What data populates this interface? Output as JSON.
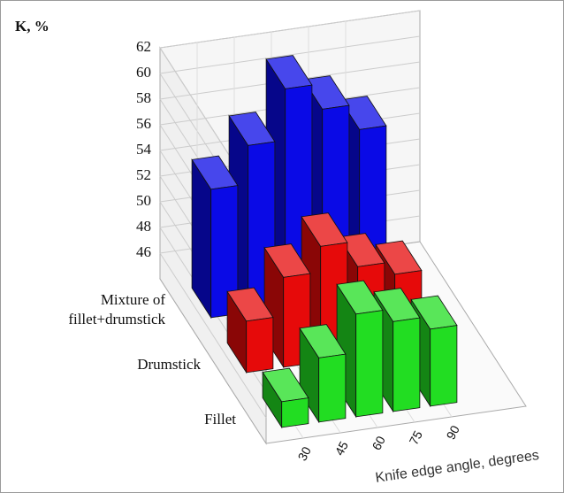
{
  "chart_data": {
    "type": "bar3d",
    "y_label": "K, %",
    "x_label": "Knife edge angle, degrees",
    "x": [
      30,
      45,
      60,
      75,
      90
    ],
    "xlim": [
      15,
      120
    ],
    "ylim": [
      44,
      62
    ],
    "yticks": [
      46,
      48,
      50,
      52,
      54,
      56,
      58,
      60,
      62
    ],
    "grid": true,
    "series": [
      {
        "name": "Mixture of fillet+drumstick",
        "color": "#0a0ae6",
        "values": [
          54,
          57,
          61,
          59,
          57
        ]
      },
      {
        "name": "Drumstick",
        "color": "#e60a0a",
        "values": [
          48,
          51,
          53,
          51,
          50
        ]
      },
      {
        "name": "Fillet",
        "color": "#22dd22",
        "values": [
          46,
          49,
          52,
          51,
          50
        ]
      }
    ]
  }
}
